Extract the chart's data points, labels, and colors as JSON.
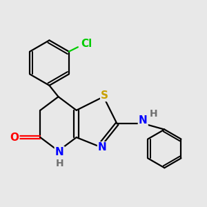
{
  "background_color": "#e8e8e8",
  "bond_color": "#000000",
  "atom_colors": {
    "S": "#c8a000",
    "N": "#0000ff",
    "O": "#ff0000",
    "Cl": "#00cc00",
    "H": "#707070",
    "C": "#000000"
  },
  "font_size": 11,
  "bond_width": 1.6,
  "figsize": [
    3.0,
    3.0
  ],
  "dpi": 100,
  "xlim": [
    0.5,
    9.5
  ],
  "ylim": [
    1.5,
    10.5
  ]
}
